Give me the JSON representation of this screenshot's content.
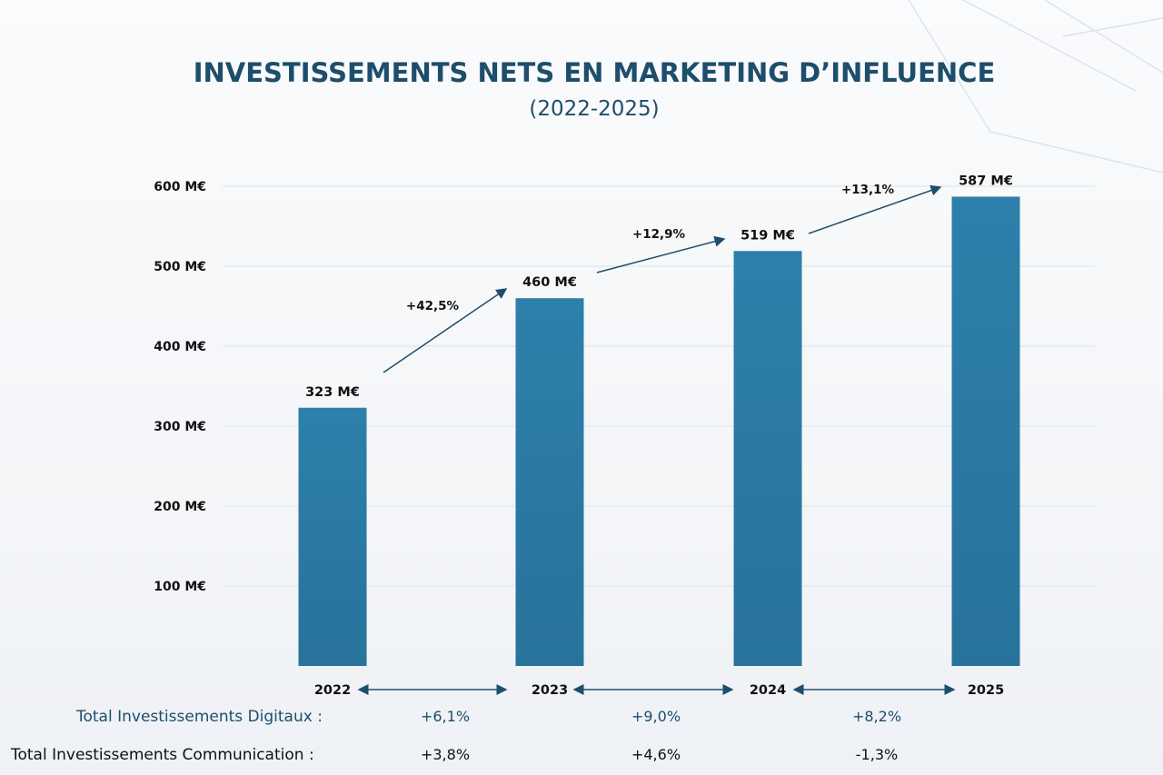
{
  "chart_data": {
    "type": "bar",
    "title": "INVESTISSEMENTS NETS EN MARKETING D’INFLUENCE",
    "subtitle": "(2022-2025)",
    "categories": [
      "2022",
      "2023",
      "2024",
      "2025"
    ],
    "values": [
      323,
      460,
      519,
      587
    ],
    "value_labels": [
      "323 M€",
      "460 M€",
      "519 M€",
      "587 M€"
    ],
    "unit": "M€",
    "ylim": [
      0,
      600
    ],
    "yticks": [
      100,
      200,
      300,
      400,
      500,
      600
    ],
    "ytick_labels": [
      "100 M€",
      "200 M€",
      "300 M€",
      "400 M€",
      "500 M€",
      "600 M€"
    ],
    "grid": true,
    "bar_color": "#2b7ba6",
    "growth_labels": [
      "+42,5%",
      "+12,9%",
      "+13,1%"
    ],
    "rows": [
      {
        "label": "Total Investissements Digitaux :",
        "values": [
          "+6,1%",
          "+9,0%",
          "+8,2%"
        ],
        "color": "#1d4e6b"
      },
      {
        "label": "Total Investissements Communication :",
        "values": [
          "+3,8%",
          "+4,6%",
          "-1,3%"
        ],
        "color": "#111111"
      }
    ]
  }
}
